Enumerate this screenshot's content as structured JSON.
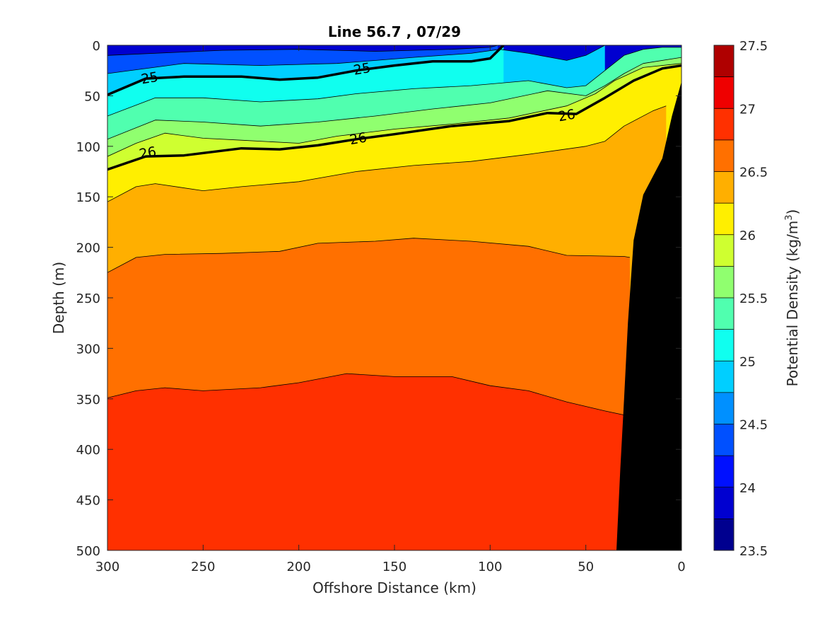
{
  "chart_data": {
    "type": "contour",
    "title": "Line 56.7 , 07/29",
    "xlabel": "Offshore Distance (km)",
    "ylabel": "Depth (m)",
    "xlim": [
      300,
      0
    ],
    "ylim": [
      500,
      0
    ],
    "x_ticks": [
      "300",
      "250",
      "200",
      "150",
      "100",
      "50",
      "0"
    ],
    "y_ticks": [
      "0",
      "50",
      "100",
      "150",
      "200",
      "250",
      "300",
      "350",
      "400",
      "450",
      "500"
    ],
    "colorbar": {
      "label": "Potential Density (kg/m",
      "label_superscript": "3",
      "label_suffix": ")",
      "range": [
        23.5,
        27.5
      ],
      "step": 0.25,
      "tick_labels": [
        "23.5",
        "24",
        "24.5",
        "25",
        "25.5",
        "26",
        "26.5",
        "27",
        "27.5"
      ],
      "colors": [
        "#00008f",
        "#0000d0",
        "#0010ff",
        "#0050ff",
        "#0090ff",
        "#00cfff",
        "#10ffef",
        "#50ffaf",
        "#90ff6f",
        "#cfff30",
        "#ffef00",
        "#ffaf00",
        "#ff7000",
        "#ff3000",
        "#ef0000",
        "#af0000"
      ]
    },
    "contour_labels": [
      {
        "text": "25",
        "distance_km": 278,
        "depth_m": 32
      },
      {
        "text": "25",
        "distance_km": 167,
        "depth_m": 23
      },
      {
        "text": "26",
        "distance_km": 279,
        "depth_m": 106
      },
      {
        "text": "26",
        "distance_km": 169,
        "depth_m": 92
      },
      {
        "text": "26",
        "distance_km": 60,
        "depth_m": 69
      }
    ],
    "contour_lines": [
      {
        "level": 24.25,
        "bold": false,
        "fill": "#0050ff",
        "points": [
          [
            300,
            10
          ],
          [
            240,
            5
          ],
          [
            200,
            4
          ],
          [
            160,
            6
          ],
          [
            120,
            4
          ],
          [
            100,
            2
          ],
          [
            96,
            0
          ]
        ]
      },
      {
        "level": 24.75,
        "bold": false,
        "fill": "#00cfff",
        "points": [
          [
            300,
            28
          ],
          [
            260,
            18
          ],
          [
            220,
            20
          ],
          [
            180,
            18
          ],
          [
            140,
            12
          ],
          [
            110,
            8
          ],
          [
            95,
            4
          ],
          [
            80,
            8
          ],
          [
            60,
            15
          ],
          [
            50,
            10
          ],
          [
            40,
            0
          ]
        ]
      },
      {
        "level": 25.0,
        "bold": true,
        "fill": "#10ffef",
        "points": [
          [
            300,
            49
          ],
          [
            280,
            33
          ],
          [
            260,
            31
          ],
          [
            230,
            31
          ],
          [
            210,
            34
          ],
          [
            190,
            32
          ],
          [
            170,
            25
          ],
          [
            150,
            20
          ],
          [
            130,
            16
          ],
          [
            110,
            16
          ],
          [
            100,
            13
          ],
          [
            93,
            0
          ]
        ]
      },
      {
        "level": 25.25,
        "bold": false,
        "fill": "#50ffaf",
        "points": [
          [
            300,
            70
          ],
          [
            275,
            52
          ],
          [
            250,
            52
          ],
          [
            220,
            56
          ],
          [
            190,
            53
          ],
          [
            170,
            48
          ],
          [
            140,
            43
          ],
          [
            110,
            40
          ],
          [
            80,
            35
          ],
          [
            60,
            42
          ],
          [
            50,
            40
          ],
          [
            40,
            25
          ],
          [
            30,
            10
          ],
          [
            20,
            4
          ],
          [
            10,
            2
          ],
          [
            0,
            2
          ]
        ]
      },
      {
        "level": 25.5,
        "bold": false,
        "fill": "#90ff6f",
        "points": [
          [
            300,
            93
          ],
          [
            275,
            74
          ],
          [
            250,
            76
          ],
          [
            220,
            80
          ],
          [
            190,
            76
          ],
          [
            160,
            70
          ],
          [
            130,
            63
          ],
          [
            100,
            57
          ],
          [
            70,
            45
          ],
          [
            50,
            50
          ],
          [
            40,
            40
          ],
          [
            30,
            28
          ],
          [
            20,
            18
          ],
          [
            0,
            12
          ]
        ]
      },
      {
        "level": 25.75,
        "bold": false,
        "fill": "#cfff30",
        "points": [
          [
            300,
            110
          ],
          [
            285,
            97
          ],
          [
            270,
            87
          ],
          [
            250,
            92
          ],
          [
            230,
            94
          ],
          [
            200,
            97
          ],
          [
            180,
            90
          ],
          [
            150,
            83
          ],
          [
            120,
            78
          ],
          [
            90,
            72
          ],
          [
            60,
            60
          ],
          [
            45,
            48
          ],
          [
            35,
            35
          ],
          [
            20,
            22
          ],
          [
            0,
            18
          ]
        ]
      },
      {
        "level": 26.0,
        "bold": true,
        "fill": "#ffef00",
        "points": [
          [
            300,
            123
          ],
          [
            280,
            110
          ],
          [
            260,
            109
          ],
          [
            230,
            102
          ],
          [
            210,
            103
          ],
          [
            190,
            99
          ],
          [
            170,
            93
          ],
          [
            150,
            88
          ],
          [
            120,
            80
          ],
          [
            90,
            75
          ],
          [
            70,
            67
          ],
          [
            55,
            68
          ],
          [
            40,
            52
          ],
          [
            25,
            35
          ],
          [
            10,
            23
          ],
          [
            0,
            20
          ]
        ]
      },
      {
        "level": 26.25,
        "bold": false,
        "fill": "#ffaf00",
        "points": [
          [
            300,
            155
          ],
          [
            285,
            140
          ],
          [
            275,
            137
          ],
          [
            250,
            144
          ],
          [
            230,
            140
          ],
          [
            200,
            135
          ],
          [
            170,
            125
          ],
          [
            140,
            119
          ],
          [
            110,
            115
          ],
          [
            80,
            108
          ],
          [
            50,
            100
          ],
          [
            40,
            95
          ],
          [
            30,
            80
          ],
          [
            15,
            65
          ],
          [
            8,
            60
          ]
        ]
      },
      {
        "level": 26.5,
        "bold": false,
        "fill": "#ff7000",
        "points": [
          [
            300,
            225
          ],
          [
            285,
            210
          ],
          [
            270,
            207
          ],
          [
            240,
            206
          ],
          [
            210,
            204
          ],
          [
            190,
            196
          ],
          [
            160,
            194
          ],
          [
            140,
            191
          ],
          [
            110,
            194
          ],
          [
            80,
            199
          ],
          [
            60,
            208
          ],
          [
            30,
            209
          ],
          [
            27,
            210
          ]
        ]
      },
      {
        "level": 26.75,
        "bold": false,
        "fill": "#ff3000",
        "points": [
          [
            300,
            349
          ],
          [
            285,
            342
          ],
          [
            270,
            339
          ],
          [
            250,
            342
          ],
          [
            220,
            339
          ],
          [
            200,
            334
          ],
          [
            175,
            325
          ],
          [
            150,
            328
          ],
          [
            120,
            328
          ],
          [
            100,
            337
          ],
          [
            80,
            342
          ],
          [
            60,
            353
          ],
          [
            40,
            362
          ],
          [
            20,
            370
          ],
          [
            5,
            376
          ],
          [
            0,
            378
          ]
        ]
      }
    ],
    "background_fill": "#0000d0",
    "bottom_profile": {
      "fill": "#000000",
      "points": [
        [
          0,
          36
        ],
        [
          5,
          70
        ],
        [
          10,
          112
        ],
        [
          20,
          148
        ],
        [
          25,
          193
        ],
        [
          28,
          275
        ],
        [
          30,
          350
        ],
        [
          32,
          420
        ],
        [
          34,
          500
        ]
      ]
    }
  }
}
